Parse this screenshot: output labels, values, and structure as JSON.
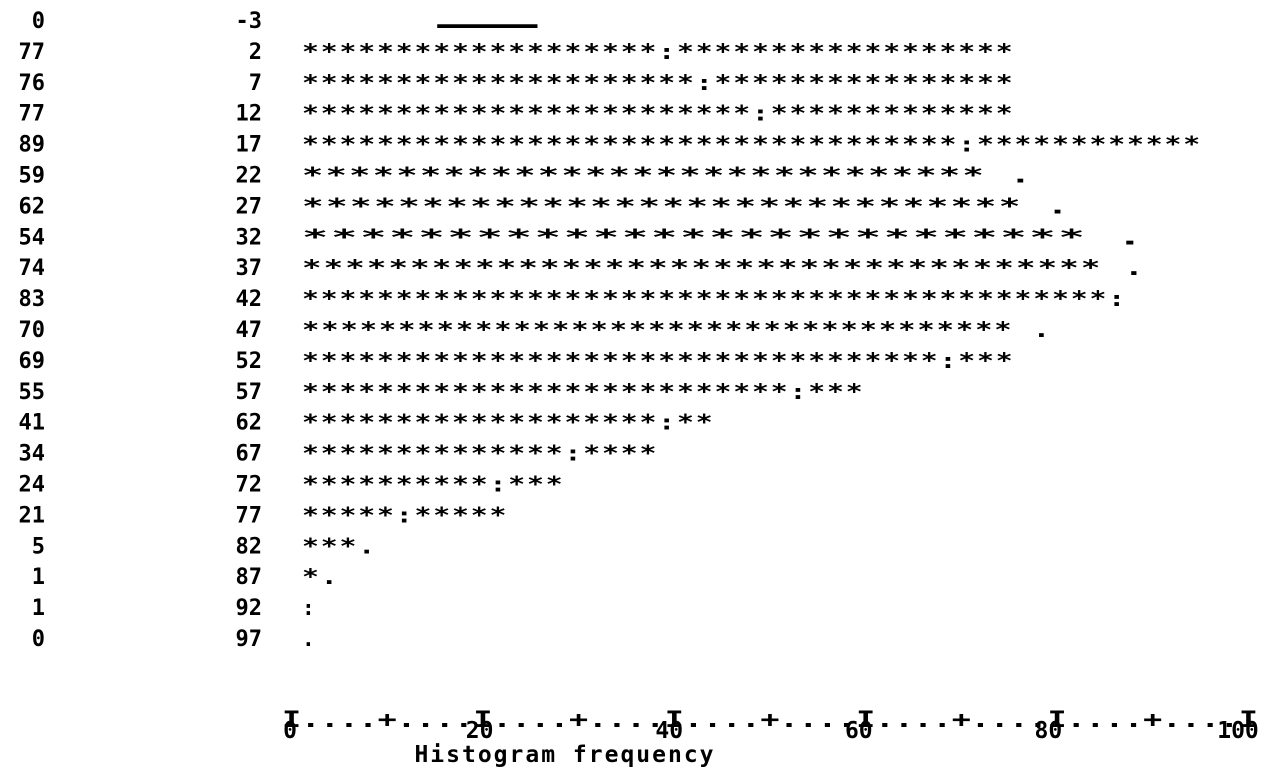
{
  "chart_data": {
    "type": "bar",
    "style": "text histogram (asterisk bars with expected-value markers)",
    "midpoints": [
      -3,
      2,
      7,
      12,
      17,
      22,
      27,
      32,
      37,
      42,
      47,
      52,
      57,
      62,
      67,
      72,
      77,
      82,
      87,
      92,
      97
    ],
    "values": [
      0,
      77,
      76,
      77,
      89,
      59,
      62,
      54,
      74,
      83,
      70,
      69,
      55,
      41,
      34,
      24,
      21,
      5,
      1,
      1,
      0
    ],
    "rows": [
      {
        "freq": "0",
        "mid": "-3",
        "bar": "                     ."
      },
      {
        "freq": "77",
        "mid": "2",
        "bar": "*******************:******************"
      },
      {
        "freq": "76",
        "mid": "7",
        "bar": "*********************:****************"
      },
      {
        "freq": "77",
        "mid": "12",
        "bar": "************************:*************"
      },
      {
        "freq": "89",
        "mid": "17",
        "bar": "***********************************:************"
      },
      {
        "freq": "59",
        "mid": "22",
        "bar": "*****************************         ."
      },
      {
        "freq": "62",
        "mid": "27",
        "bar": "******************************          ."
      },
      {
        "freq": "54",
        "mid": "32",
        "bar": "***************************                 ."
      },
      {
        "freq": "74",
        "mid": "37",
        "bar": "*************************************       ."
      },
      {
        "freq": "83",
        "mid": "42",
        "bar": "*******************************************:"
      },
      {
        "freq": "70",
        "mid": "47",
        "bar": "*************************************  ."
      },
      {
        "freq": "69",
        "mid": "52",
        "bar": "**********************************:***"
      },
      {
        "freq": "55",
        "mid": "57",
        "bar": "**************************:***"
      },
      {
        "freq": "41",
        "mid": "62",
        "bar": "*******************:**"
      },
      {
        "freq": "34",
        "mid": "67",
        "bar": "**************:****"
      },
      {
        "freq": "24",
        "mid": "72",
        "bar": "**********:***"
      },
      {
        "freq": "21",
        "mid": "77",
        "bar": "*****:*****"
      },
      {
        "freq": "5",
        "mid": "82",
        "bar": "***."
      },
      {
        "freq": "1",
        "mid": "87",
        "bar": "*."
      },
      {
        "freq": "1",
        "mid": "92",
        "bar": ":"
      },
      {
        "freq": "0",
        "mid": "97",
        "bar": "."
      }
    ],
    "axis_line": "I....+....I....+....I....+....I....+....I....+....I",
    "xticks": [
      "0",
      "20",
      "40",
      "60",
      "80",
      "100"
    ],
    "xlim": [
      0,
      100
    ],
    "xlabel": "Histogram frequency"
  }
}
